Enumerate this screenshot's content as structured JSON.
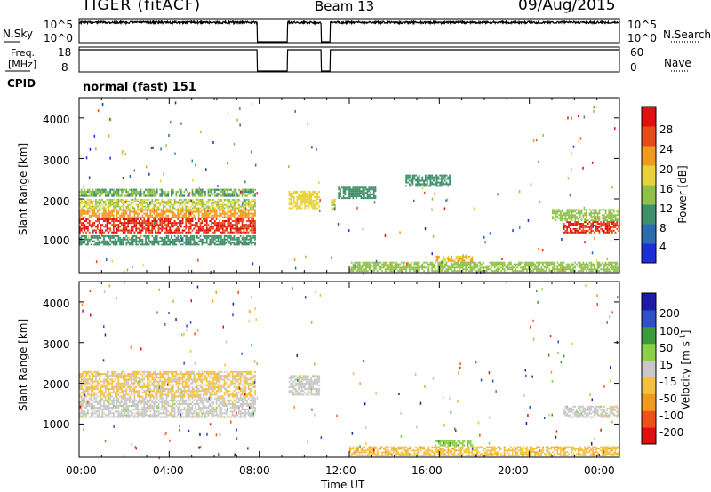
{
  "header": {
    "radar": "TIGER (fitACF)",
    "beam": "Beam 13",
    "date": "09/Aug/2015"
  },
  "status": {
    "nsky_label": "N.Sky",
    "nsearch_label": "N.Search",
    "nsky_ticks": [
      "10^5",
      "10^0"
    ],
    "nsearch_ticks": [
      "10^5",
      "10^0"
    ],
    "freq_label_1": "Freq.",
    "freq_label_2": "[MHz]",
    "freq_ticks": [
      "18",
      "8"
    ],
    "nave_label": "Nave",
    "nave_ticks": [
      "60",
      "0"
    ],
    "cpid_label": "CPID",
    "cpid_value": "normal (fast) 151"
  },
  "chart_data": [
    {
      "type": "heatmap",
      "title": "",
      "xlabel": "",
      "ylabel": "Slant Range [km]",
      "colorbar_label": "Power [dB]",
      "xlim": [
        0,
        24
      ],
      "ylim": [
        180,
        4500
      ],
      "colorbar_range": [
        0,
        32
      ],
      "colorbar_ticks": [
        "4",
        "8",
        "12",
        "16",
        "20",
        "24",
        "28"
      ],
      "colors": [
        "#1e2fd8",
        "#2d6bb0",
        "#3f8f6a",
        "#8fc04a",
        "#e8d23a",
        "#f09a20",
        "#e84a18",
        "#e01010"
      ],
      "x_ticks": [
        "00:00",
        "04:00",
        "08:00",
        "12:00",
        "16:00",
        "20:00",
        "00:00"
      ],
      "y_ticks": [
        "1000",
        "2000",
        "3000",
        "4000"
      ],
      "data_gaps_ut": [
        [
          7.9,
          9.25
        ],
        [
          10.75,
          11.15
        ]
      ],
      "echo_regions": [
        {
          "t": [
            0.0,
            7.85
          ],
          "r": [
            1150,
            1520
          ],
          "level": 28
        },
        {
          "t": [
            0.0,
            7.85
          ],
          "r": [
            1520,
            1750
          ],
          "level": 22
        },
        {
          "t": [
            0.0,
            7.85
          ],
          "r": [
            1750,
            2000
          ],
          "level": 16
        },
        {
          "t": [
            0.0,
            7.85
          ],
          "r": [
            2050,
            2250
          ],
          "level": 12
        },
        {
          "t": [
            0.0,
            7.85
          ],
          "r": [
            850,
            1100
          ],
          "level": 10
        },
        {
          "t": [
            9.3,
            10.7
          ],
          "r": [
            1750,
            2200
          ],
          "level": 18
        },
        {
          "t": [
            11.2,
            11.4
          ],
          "r": [
            1700,
            2000
          ],
          "level": 16
        },
        {
          "t": [
            11.5,
            13.2
          ],
          "r": [
            2000,
            2300
          ],
          "level": 10
        },
        {
          "t": [
            14.5,
            16.5
          ],
          "r": [
            2300,
            2600
          ],
          "level": 10
        },
        {
          "t": [
            21.5,
            24.0
          ],
          "r": [
            1150,
            1450
          ],
          "level": 28
        },
        {
          "t": [
            21.0,
            24.0
          ],
          "r": [
            1450,
            1750
          ],
          "level": 14
        },
        {
          "t": [
            12.0,
            24.0
          ],
          "r": [
            200,
            450
          ],
          "level": 14
        },
        {
          "t": [
            15.8,
            17.5
          ],
          "r": [
            450,
            600
          ],
          "level": 20
        }
      ]
    },
    {
      "type": "heatmap",
      "title": "",
      "xlabel": "Time UT",
      "ylabel": "Slant Range [km]",
      "colorbar_label": "Velocity [m s^-1]",
      "xlim": [
        0,
        24
      ],
      "ylim": [
        180,
        4500
      ],
      "colorbar_range": [
        -250,
        250
      ],
      "colorbar_ticks": [
        "200",
        "100",
        "50",
        "15",
        "-15",
        "-50",
        "-100",
        "-200"
      ],
      "colors": [
        "#e01010",
        "#f05018",
        "#f09a20",
        "#f5c040",
        "#c8c8c8",
        "#8ad04a",
        "#3c9a3c",
        "#3050c8",
        "#1c1ca8"
      ],
      "x_ticks": [
        "00:00",
        "04:00",
        "08:00",
        "12:00",
        "16:00",
        "20:00",
        "00:00"
      ],
      "y_ticks": [
        "1000",
        "2000",
        "3000",
        "4000"
      ],
      "data_gaps_ut": [
        [
          7.9,
          9.25
        ],
        [
          10.75,
          11.15
        ]
      ],
      "echo_regions": [
        {
          "t": [
            0.0,
            7.85
          ],
          "r": [
            1150,
            1650
          ],
          "level": 0
        },
        {
          "t": [
            0.0,
            7.85
          ],
          "r": [
            1650,
            2300
          ],
          "level": -40
        },
        {
          "t": [
            9.3,
            10.7
          ],
          "r": [
            1700,
            2200
          ],
          "level": 0
        },
        {
          "t": [
            21.5,
            24.0
          ],
          "r": [
            1150,
            1450
          ],
          "level": 0
        },
        {
          "t": [
            12.0,
            24.0
          ],
          "r": [
            200,
            450
          ],
          "level": -60
        },
        {
          "t": [
            15.8,
            17.5
          ],
          "r": [
            450,
            600
          ],
          "level": 60
        }
      ]
    }
  ]
}
